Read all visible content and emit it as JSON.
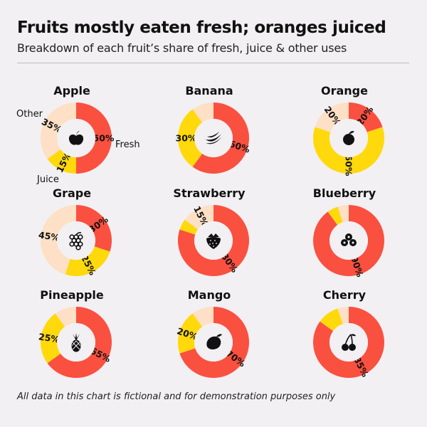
{
  "header": {
    "title": "Fruits mostly eaten fresh; oranges juiced",
    "subtitle": "Breakdown of each fruit’s share of fresh, juice & other uses"
  },
  "footnote": "All data in this chart is fictional and for demonstration purposes only",
  "colors": {
    "fresh": "#fa5040",
    "juice": "#ffd90b",
    "other": "#fde0c5",
    "icon": "#111111"
  },
  "legend_labels": {
    "other": "Other",
    "fresh": "Fresh",
    "juice": "Juice"
  },
  "chart_data": {
    "type": "pie",
    "variant": "donut small multiples",
    "segments": [
      "Fresh",
      "Juice",
      "Other"
    ],
    "charts": [
      {
        "name": "Apple",
        "icon": "apple-icon",
        "values": {
          "fresh": 50,
          "juice": 15,
          "other": 35
        },
        "labels": {
          "fresh": "50%",
          "juice": "15%",
          "other": "35%"
        }
      },
      {
        "name": "Banana",
        "icon": "banana-icon",
        "values": {
          "fresh": 60,
          "juice": 30,
          "other": 10
        },
        "labels": {
          "fresh": "60%",
          "juice": "30%"
        }
      },
      {
        "name": "Orange",
        "icon": "orange-icon",
        "values": {
          "fresh": 20,
          "juice": 60,
          "other": 20
        },
        "labels": {
          "fresh": "20%",
          "juice": "60%",
          "other": "20%"
        }
      },
      {
        "name": "Grape",
        "icon": "grape-icon",
        "values": {
          "fresh": 30,
          "juice": 25,
          "other": 45
        },
        "labels": {
          "fresh": "30%",
          "juice": "25%",
          "other": "45%"
        }
      },
      {
        "name": "Strawberry",
        "icon": "strawberry-icon",
        "values": {
          "fresh": 80,
          "juice": 5,
          "other": 15
        },
        "labels": {
          "fresh": "80%",
          "other": "15%"
        }
      },
      {
        "name": "Blueberry",
        "icon": "blueberry-icon",
        "values": {
          "fresh": 90,
          "juice": 5,
          "other": 5
        },
        "labels": {
          "fresh": "90%"
        }
      },
      {
        "name": "Pineapple",
        "icon": "pineapple-icon",
        "values": {
          "fresh": 65,
          "juice": 25,
          "other": 10
        },
        "labels": {
          "fresh": "65%",
          "juice": "25%"
        }
      },
      {
        "name": "Mango",
        "icon": "mango-icon",
        "values": {
          "fresh": 70,
          "juice": 20,
          "other": 10
        },
        "labels": {
          "fresh": "70%",
          "juice": "20%"
        }
      },
      {
        "name": "Cherry",
        "icon": "cherry-icon",
        "values": {
          "fresh": 85,
          "juice": 10,
          "other": 5
        },
        "labels": {
          "fresh": "85%"
        }
      }
    ]
  }
}
